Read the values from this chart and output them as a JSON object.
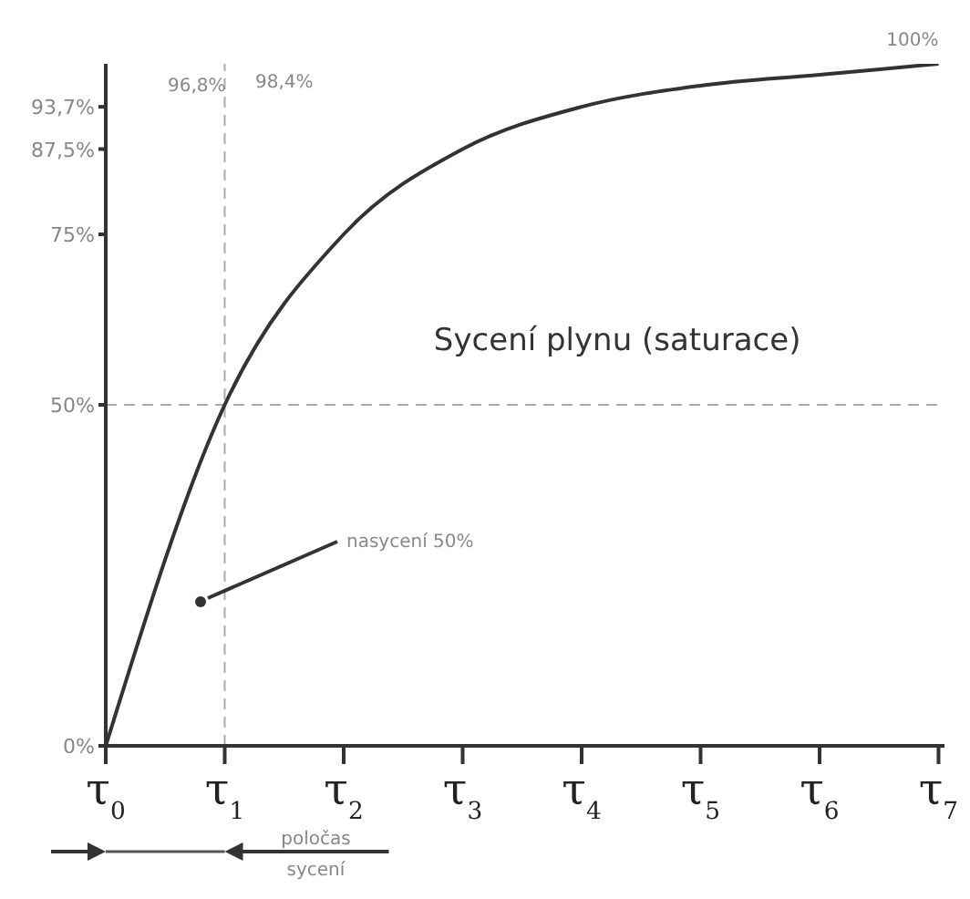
{
  "chart_data": {
    "type": "line",
    "title": "Sycení plynu (saturace)",
    "x": [
      0,
      1,
      2,
      3,
      4,
      5,
      6,
      7
    ],
    "series": [
      {
        "color": "#333333",
        "values": [
          0,
          50,
          75,
          87.5,
          93.7,
          96.8,
          98.4,
          100
        ]
      }
    ],
    "xlim": [
      0,
      7.05
    ],
    "xticks": [
      {
        "value": 0,
        "label": "τ$_{0}$"
      },
      {
        "value": 1,
        "label": "τ$_{1}$"
      },
      {
        "value": 2,
        "label": "τ$_{2}$"
      },
      {
        "value": 3,
        "label": "τ$_{3}$"
      },
      {
        "value": 4,
        "label": "τ$_{4}$"
      },
      {
        "value": 5,
        "label": "τ$_{5}$"
      },
      {
        "value": 6,
        "label": "τ$_{6}$"
      },
      {
        "value": 7,
        "label": "τ$_{7}$"
      }
    ],
    "ylim": [
      0,
      100
    ],
    "yticks": [
      {
        "value": 0,
        "label": "0%"
      },
      {
        "value": 50,
        "label": "50%"
      },
      {
        "value": 75,
        "label": "75%"
      },
      {
        "value": 87.5,
        "label": "87,5%"
      },
      {
        "value": 93.7,
        "label": "93,7%"
      }
    ],
    "ref_lines": [
      {
        "axis": "y",
        "value": 50,
        "color": "#aaaaaa",
        "line_style": "dashed"
      },
      {
        "axis": "x",
        "value": 1,
        "color": "#aaaaaa",
        "line_style": "dashed"
      }
    ],
    "annotations": [
      "96,8%",
      "98,4%",
      {
        "text": "100%",
        "x": 7,
        "y": 100
      },
      "nasycení 50%",
      "poločas sycení"
    ],
    "grid": false,
    "legend": false,
    "marker": "none",
    "line_style": "solid"
  }
}
